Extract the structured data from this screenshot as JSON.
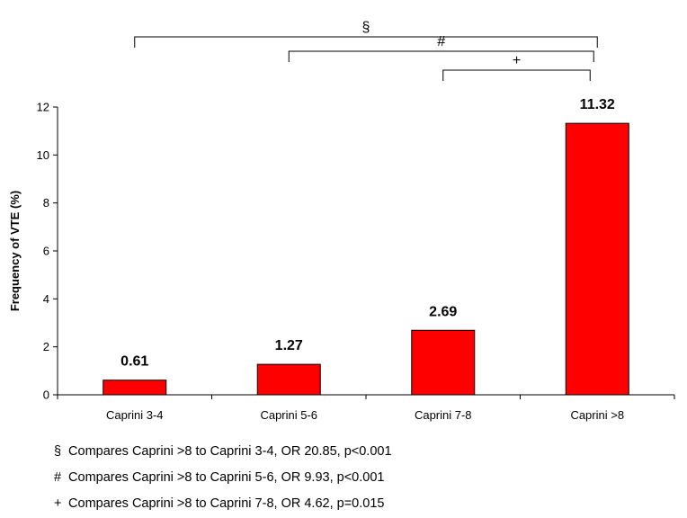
{
  "chart_data": {
    "type": "bar",
    "categories": [
      "Caprini 3-4",
      "Caprini 5-6",
      "Caprini 7-8",
      "Caprini >8"
    ],
    "values": [
      0.61,
      1.27,
      2.69,
      11.32
    ],
    "value_labels": [
      "0.61",
      "1.27",
      "2.69",
      "11.32"
    ],
    "ylabel": "Frequency of VTE (%)",
    "ylim": [
      0,
      12
    ],
    "yticks": [
      0,
      2,
      4,
      6,
      8,
      10,
      12
    ],
    "bar_color": "#ff0000",
    "grid": false,
    "comparisons": [
      {
        "symbol": "§",
        "from": 0,
        "to": 3
      },
      {
        "symbol": "#",
        "from": 1,
        "to": 3
      },
      {
        "symbol": "+",
        "from": 2,
        "to": 3
      }
    ]
  },
  "footnotes": [
    {
      "symbol": "§",
      "text": "Compares Caprini >8 to Caprini 3-4, OR 20.85, p<0.001"
    },
    {
      "symbol": "#",
      "text": "Compares Caprini >8 to Caprini 5-6, OR 9.93, p<0.001"
    },
    {
      "symbol": "+",
      "text": "Compares Caprini >8 to Caprini 7-8, OR 4.62, p=0.015"
    }
  ]
}
